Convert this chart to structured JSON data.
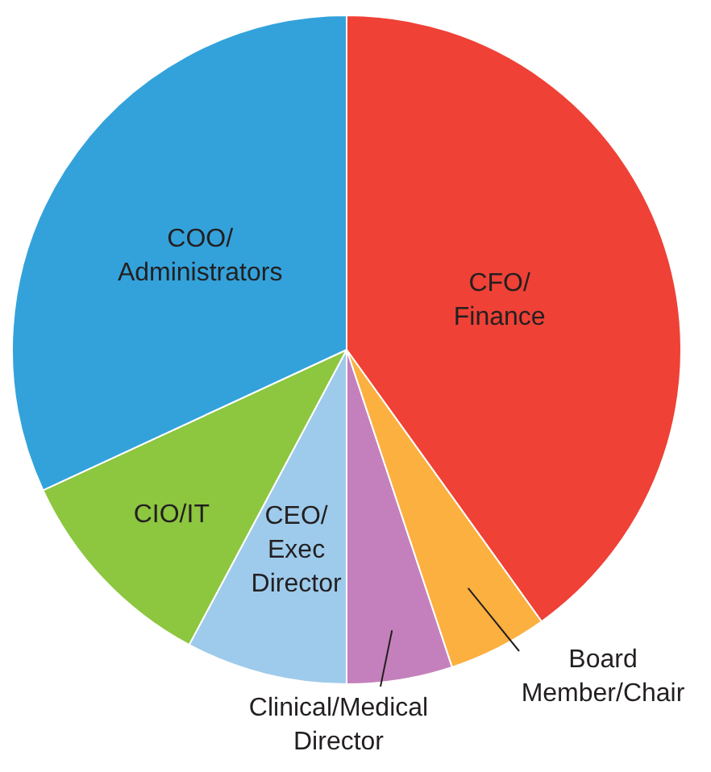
{
  "chart_data": {
    "type": "pie",
    "categories": [
      "CFO/Finance",
      "Board Member/Chair",
      "Clinical/Medical Director",
      "CEO/Exec Director",
      "CIO/IT",
      "COO/Administrators"
    ],
    "values": [
      40.1,
      4.8,
      5.1,
      7.8,
      10.3,
      31.9
    ],
    "colors": [
      "#ef4136",
      "#fbb040",
      "#c480bc",
      "#9ecbeb",
      "#8dc63f",
      "#33a2db"
    ]
  }
}
